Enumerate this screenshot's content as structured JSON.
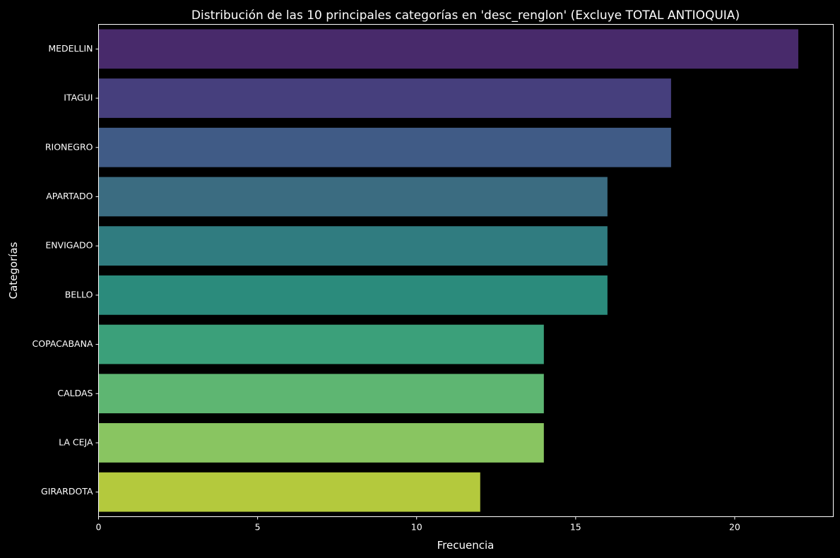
{
  "chart_data": {
    "type": "bar",
    "orientation": "horizontal",
    "title": "Distribución de las 10 principales categorías en 'desc_renglon' (Excluye TOTAL ANTIOQUIA)",
    "xlabel": "Frecuencia",
    "ylabel": "Categorías",
    "categories": [
      "MEDELLIN",
      "ITAGUI",
      "RIONEGRO",
      "APARTADO",
      "ENVIGADO",
      "BELLO",
      "COPACABANA",
      "CALDAS",
      "LA CEJA",
      "GIRARDOTA"
    ],
    "values": [
      22,
      18,
      18,
      16,
      16,
      16,
      14,
      14,
      14,
      12
    ],
    "colors": [
      "#482a6b",
      "#463f7d",
      "#405b86",
      "#3b6c81",
      "#307c80",
      "#2b8b7c",
      "#3ba07a",
      "#5eb672",
      "#89c561",
      "#b4c93d"
    ],
    "xlim": [
      0,
      23.1
    ],
    "xticks": [
      0,
      5,
      10,
      15,
      20
    ],
    "grid": false,
    "background": "#000000",
    "text_color": "#ffffff"
  }
}
